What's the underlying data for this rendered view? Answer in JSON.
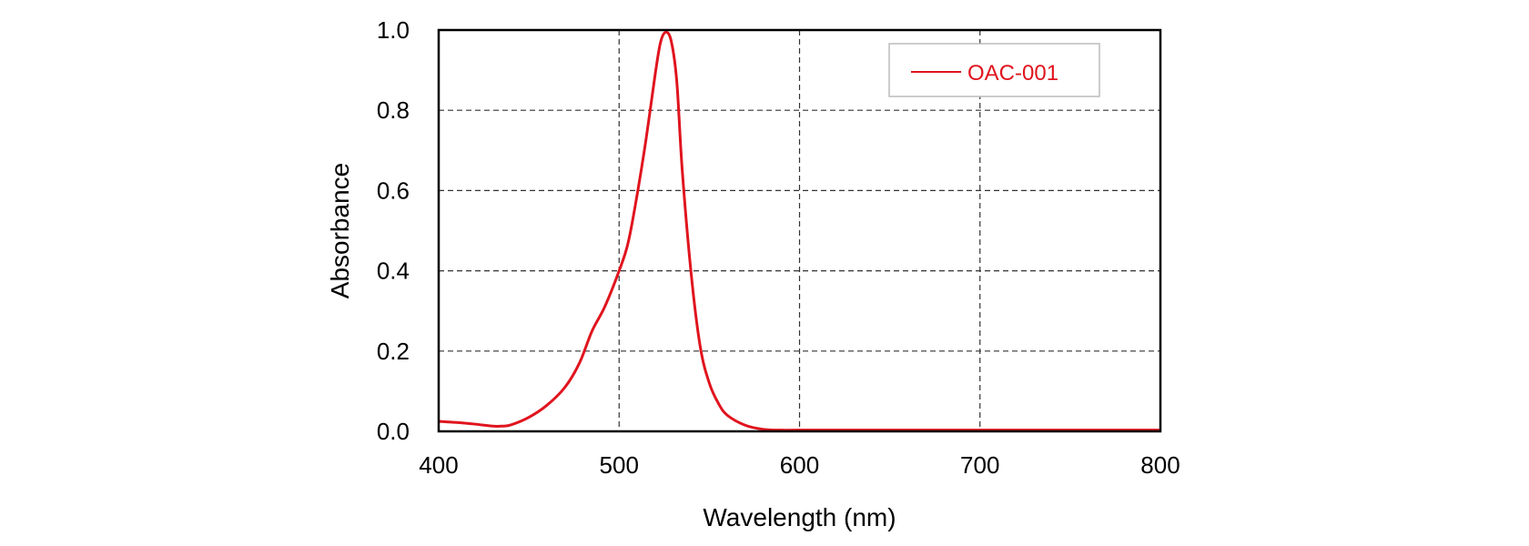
{
  "chart_data": {
    "type": "line",
    "title": "",
    "xlabel": "Wavelength (nm)",
    "ylabel": "Absorbance",
    "xlim": [
      400,
      800
    ],
    "ylim": [
      0.0,
      1.0
    ],
    "xticks": [
      400,
      500,
      600,
      700,
      800
    ],
    "xtick_labels": [
      "400",
      "500",
      "600",
      "700",
      "800"
    ],
    "yticks": [
      0.0,
      0.2,
      0.4,
      0.6,
      0.8,
      1.0
    ],
    "ytick_labels": [
      "0.0",
      "0.2",
      "0.4",
      "0.6",
      "0.8",
      "1.0"
    ],
    "grid": true,
    "legend_position": "top-right",
    "series_color": "#e0141e",
    "series": [
      {
        "name": "OAC-001",
        "x": [
          400,
          410,
          420,
          430,
          435,
          440,
          450,
          460,
          470,
          478,
          485,
          492,
          500,
          505,
          510,
          515,
          520,
          523,
          526,
          529,
          532,
          535,
          540,
          545,
          550,
          555,
          560,
          570,
          580,
          590,
          600,
          650,
          700,
          750,
          800
        ],
        "y": [
          0.025,
          0.022,
          0.018,
          0.013,
          0.013,
          0.016,
          0.035,
          0.065,
          0.11,
          0.17,
          0.25,
          0.31,
          0.4,
          0.47,
          0.59,
          0.73,
          0.89,
          0.97,
          0.995,
          0.97,
          0.87,
          0.65,
          0.39,
          0.21,
          0.12,
          0.07,
          0.04,
          0.015,
          0.005,
          0.003,
          0.003,
          0.003,
          0.003,
          0.003,
          0.003
        ]
      }
    ]
  }
}
